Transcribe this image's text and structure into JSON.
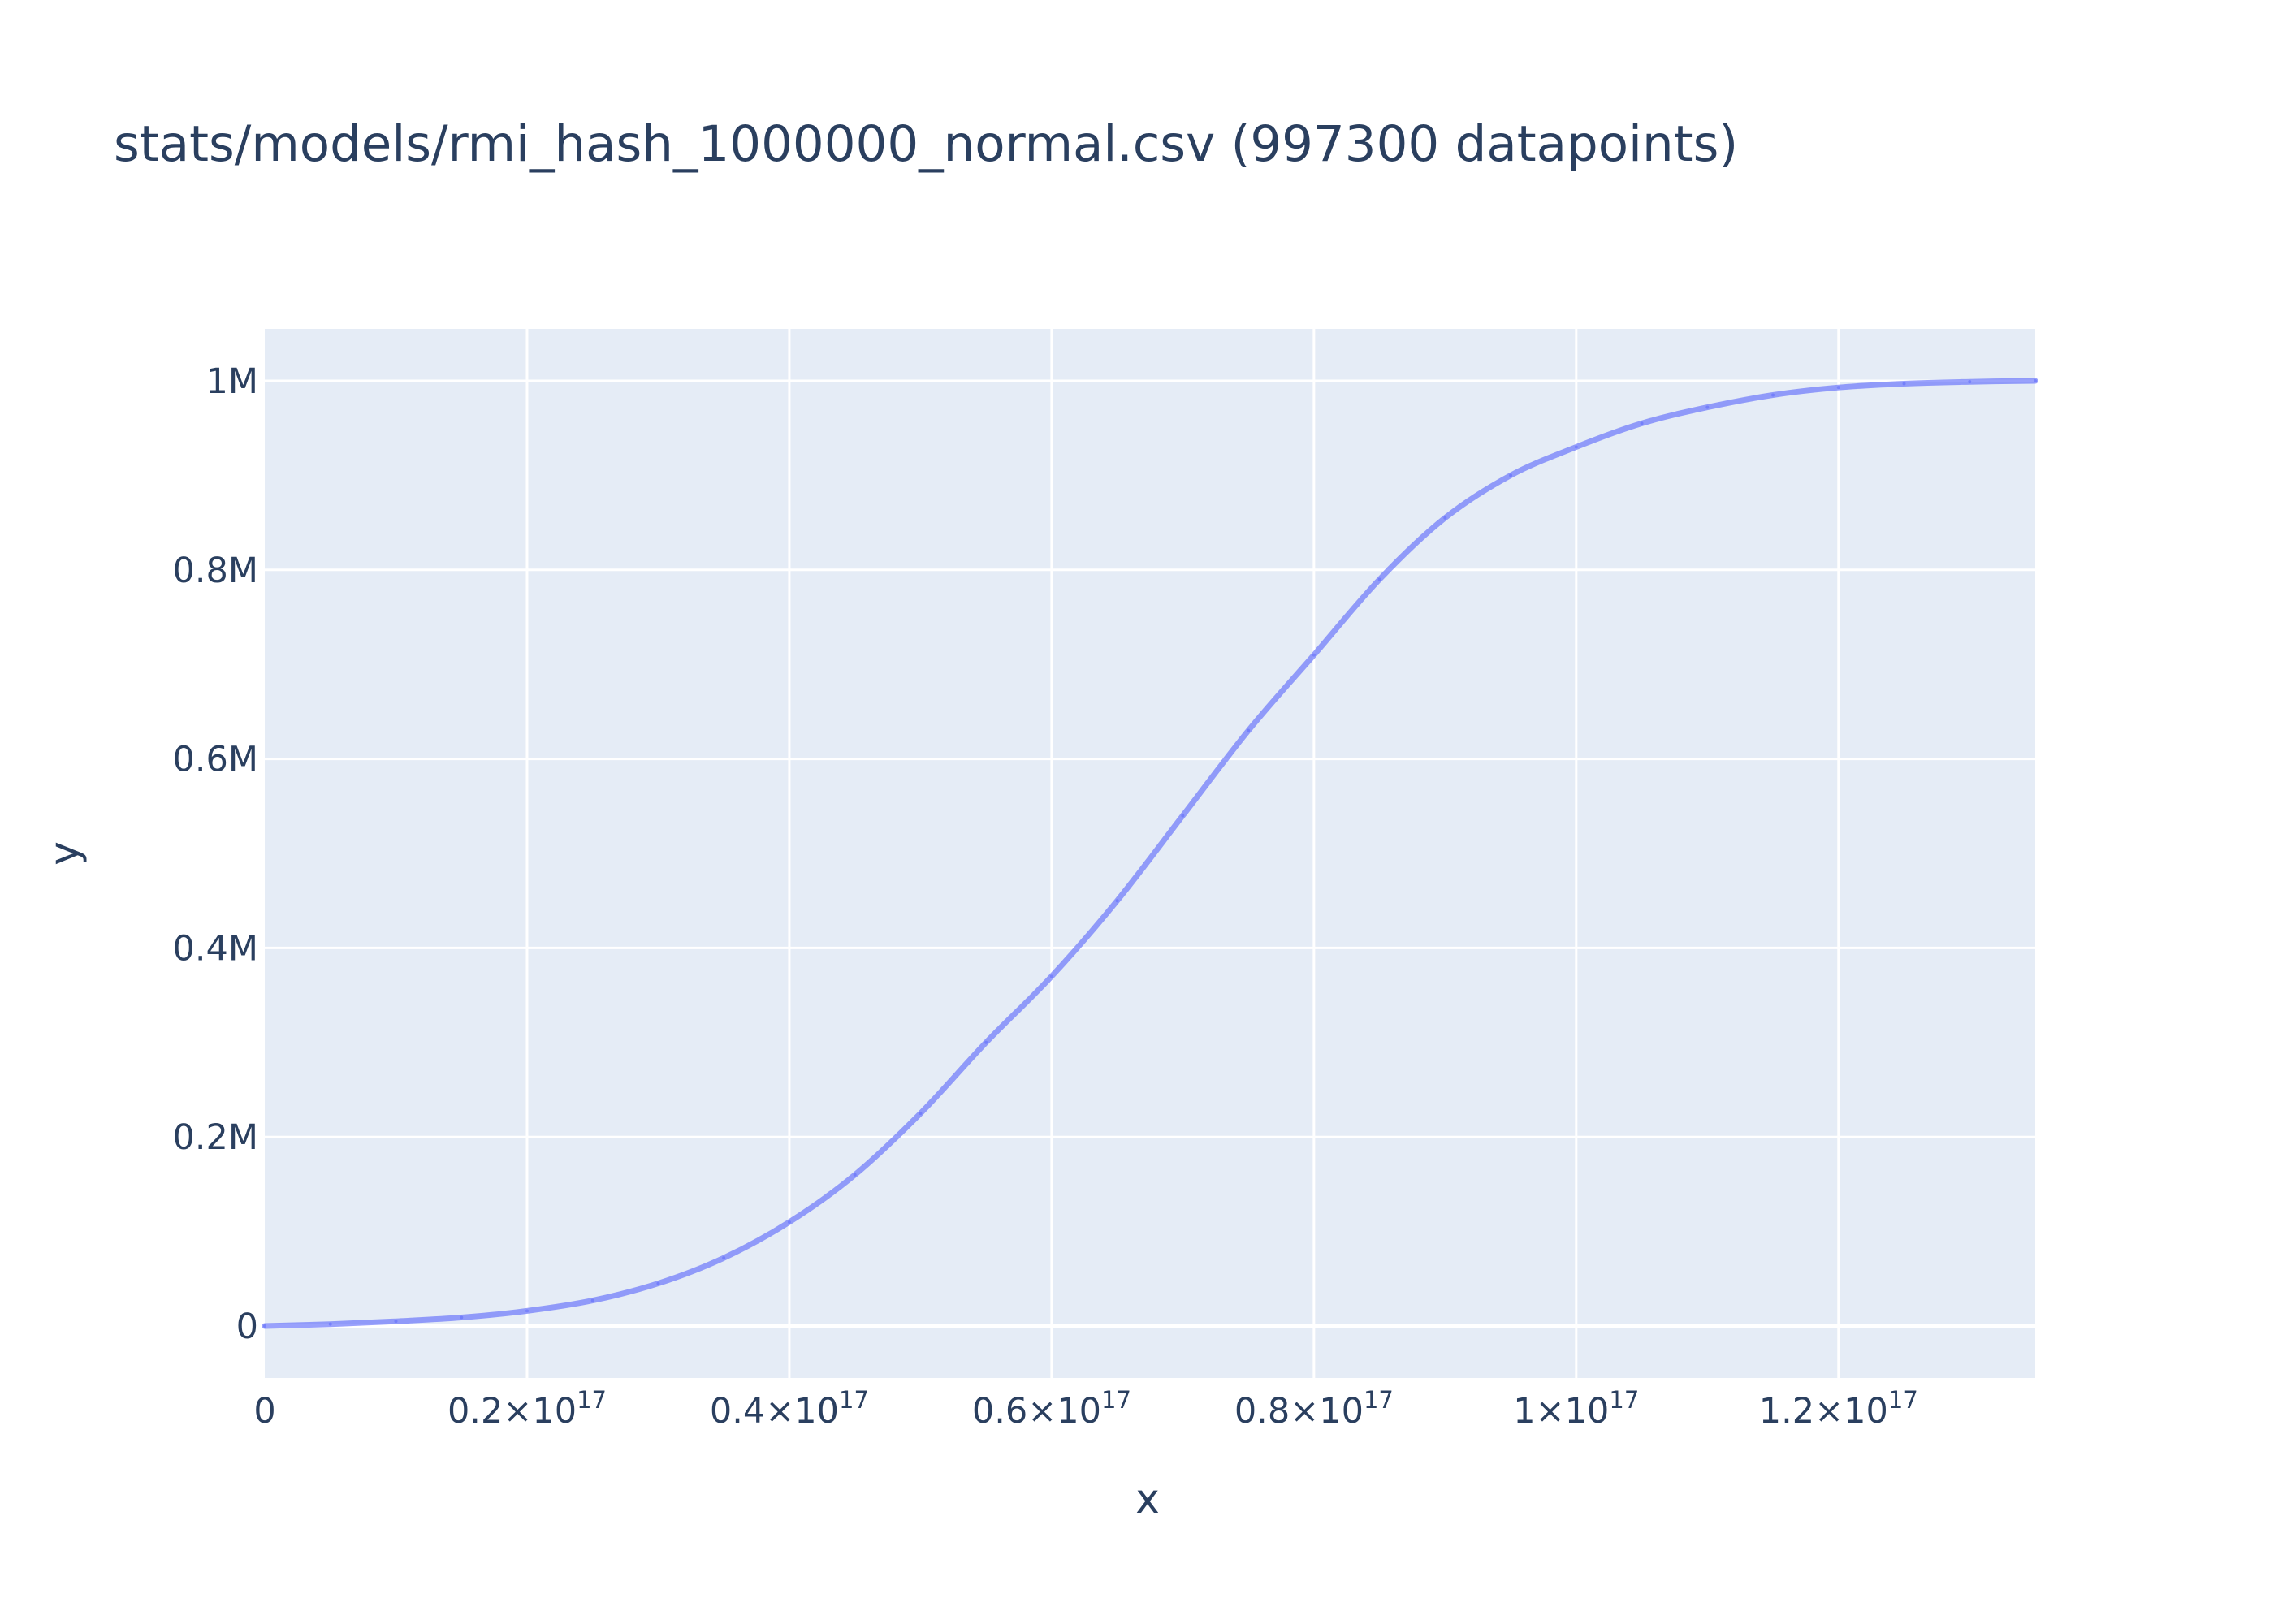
{
  "chart_data": {
    "type": "line",
    "title": "stats/models/rmi_hash_1000000_normal.csv (997300 datapoints)",
    "xlabel": "x",
    "ylabel": "y",
    "xlim": [
      0,
      1.35e+17
    ],
    "ylim": [
      -55000,
      1055000
    ],
    "grid": true,
    "legend": "none",
    "x_ticks": [
      {
        "value": 0,
        "label": "0",
        "exp": ""
      },
      {
        "value": 2e+16,
        "label": "0.2×10",
        "exp": "17"
      },
      {
        "value": 4e+16,
        "label": "0.4×10",
        "exp": "17"
      },
      {
        "value": 6e+16,
        "label": "0.6×10",
        "exp": "17"
      },
      {
        "value": 8e+16,
        "label": "0.8×10",
        "exp": "17"
      },
      {
        "value": 1e+17,
        "label": "1×10",
        "exp": "17"
      },
      {
        "value": 1.2e+17,
        "label": "1.2×10",
        "exp": "17"
      }
    ],
    "y_ticks": [
      {
        "value": 0,
        "label": "0"
      },
      {
        "value": 200000,
        "label": "0.2M"
      },
      {
        "value": 400000,
        "label": "0.4M"
      },
      {
        "value": 600000,
        "label": "0.6M"
      },
      {
        "value": 800000,
        "label": "0.8M"
      },
      {
        "value": 1000000,
        "label": "1M"
      }
    ],
    "series": [
      {
        "color": "#636efa",
        "x": [
          0,
          5000000000000000.0,
          1e+16,
          1.5e+16,
          2e+16,
          2.5e+16,
          3e+16,
          3.5e+16,
          4e+16,
          4.5e+16,
          5e+16,
          5.5e+16,
          6e+16,
          6.5e+16,
          7e+16,
          7.5e+16,
          8e+16,
          8.5e+16,
          9e+16,
          9.5e+16,
          1e+17,
          1.05e+17,
          1.1e+17,
          1.15e+17,
          1.2e+17,
          1.25e+17,
          1.3e+17,
          1.35e+17
        ],
        "y": [
          0,
          2000,
          5000,
          9000,
          16000,
          27000,
          45000,
          72000,
          110000,
          160000,
          225000,
          300000,
          370000,
          450000,
          540000,
          630000,
          710000,
          790000,
          855000,
          900000,
          930000,
          955000,
          972000,
          985000,
          993000,
          997000,
          999000,
          1000000
        ]
      }
    ]
  }
}
